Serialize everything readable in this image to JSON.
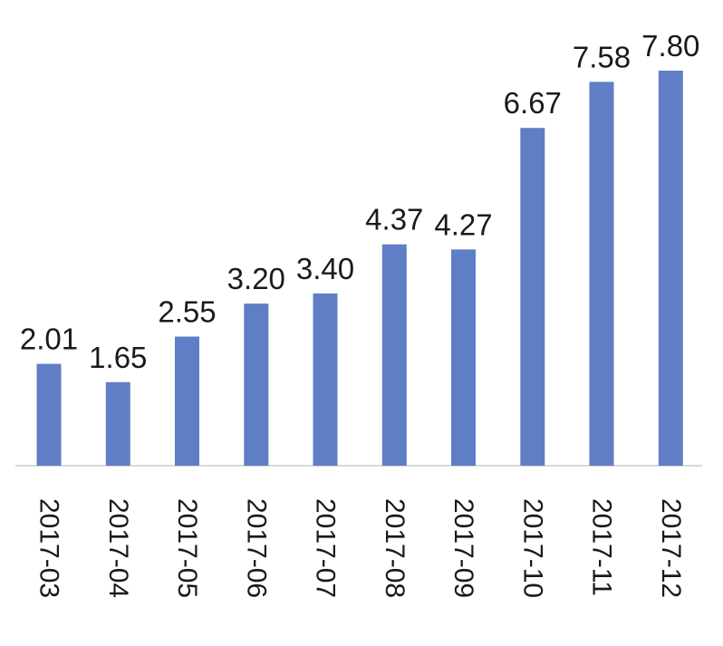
{
  "chart_data": {
    "type": "bar",
    "categories": [
      "2017-03",
      "2017-04",
      "2017-05",
      "2017-06",
      "2017-07",
      "2017-08",
      "2017-09",
      "2017-10",
      "2017-11",
      "2017-12"
    ],
    "values": [
      2.01,
      1.65,
      2.55,
      3.2,
      3.4,
      4.37,
      4.27,
      6.67,
      7.58,
      7.8
    ],
    "value_labels": [
      "2.01",
      "1.65",
      "2.55",
      "3.20",
      "3.40",
      "4.37",
      "4.27",
      "6.67",
      "7.58",
      "7.80"
    ],
    "ylim": [
      0,
      7.8
    ],
    "grid": false,
    "legend": "none",
    "tick_label_orientation": "rotated-90-clockwise",
    "colors": {
      "bar": "#5f7ec5",
      "axis": "#d9d9d9",
      "text": "#1a1a1a"
    }
  }
}
